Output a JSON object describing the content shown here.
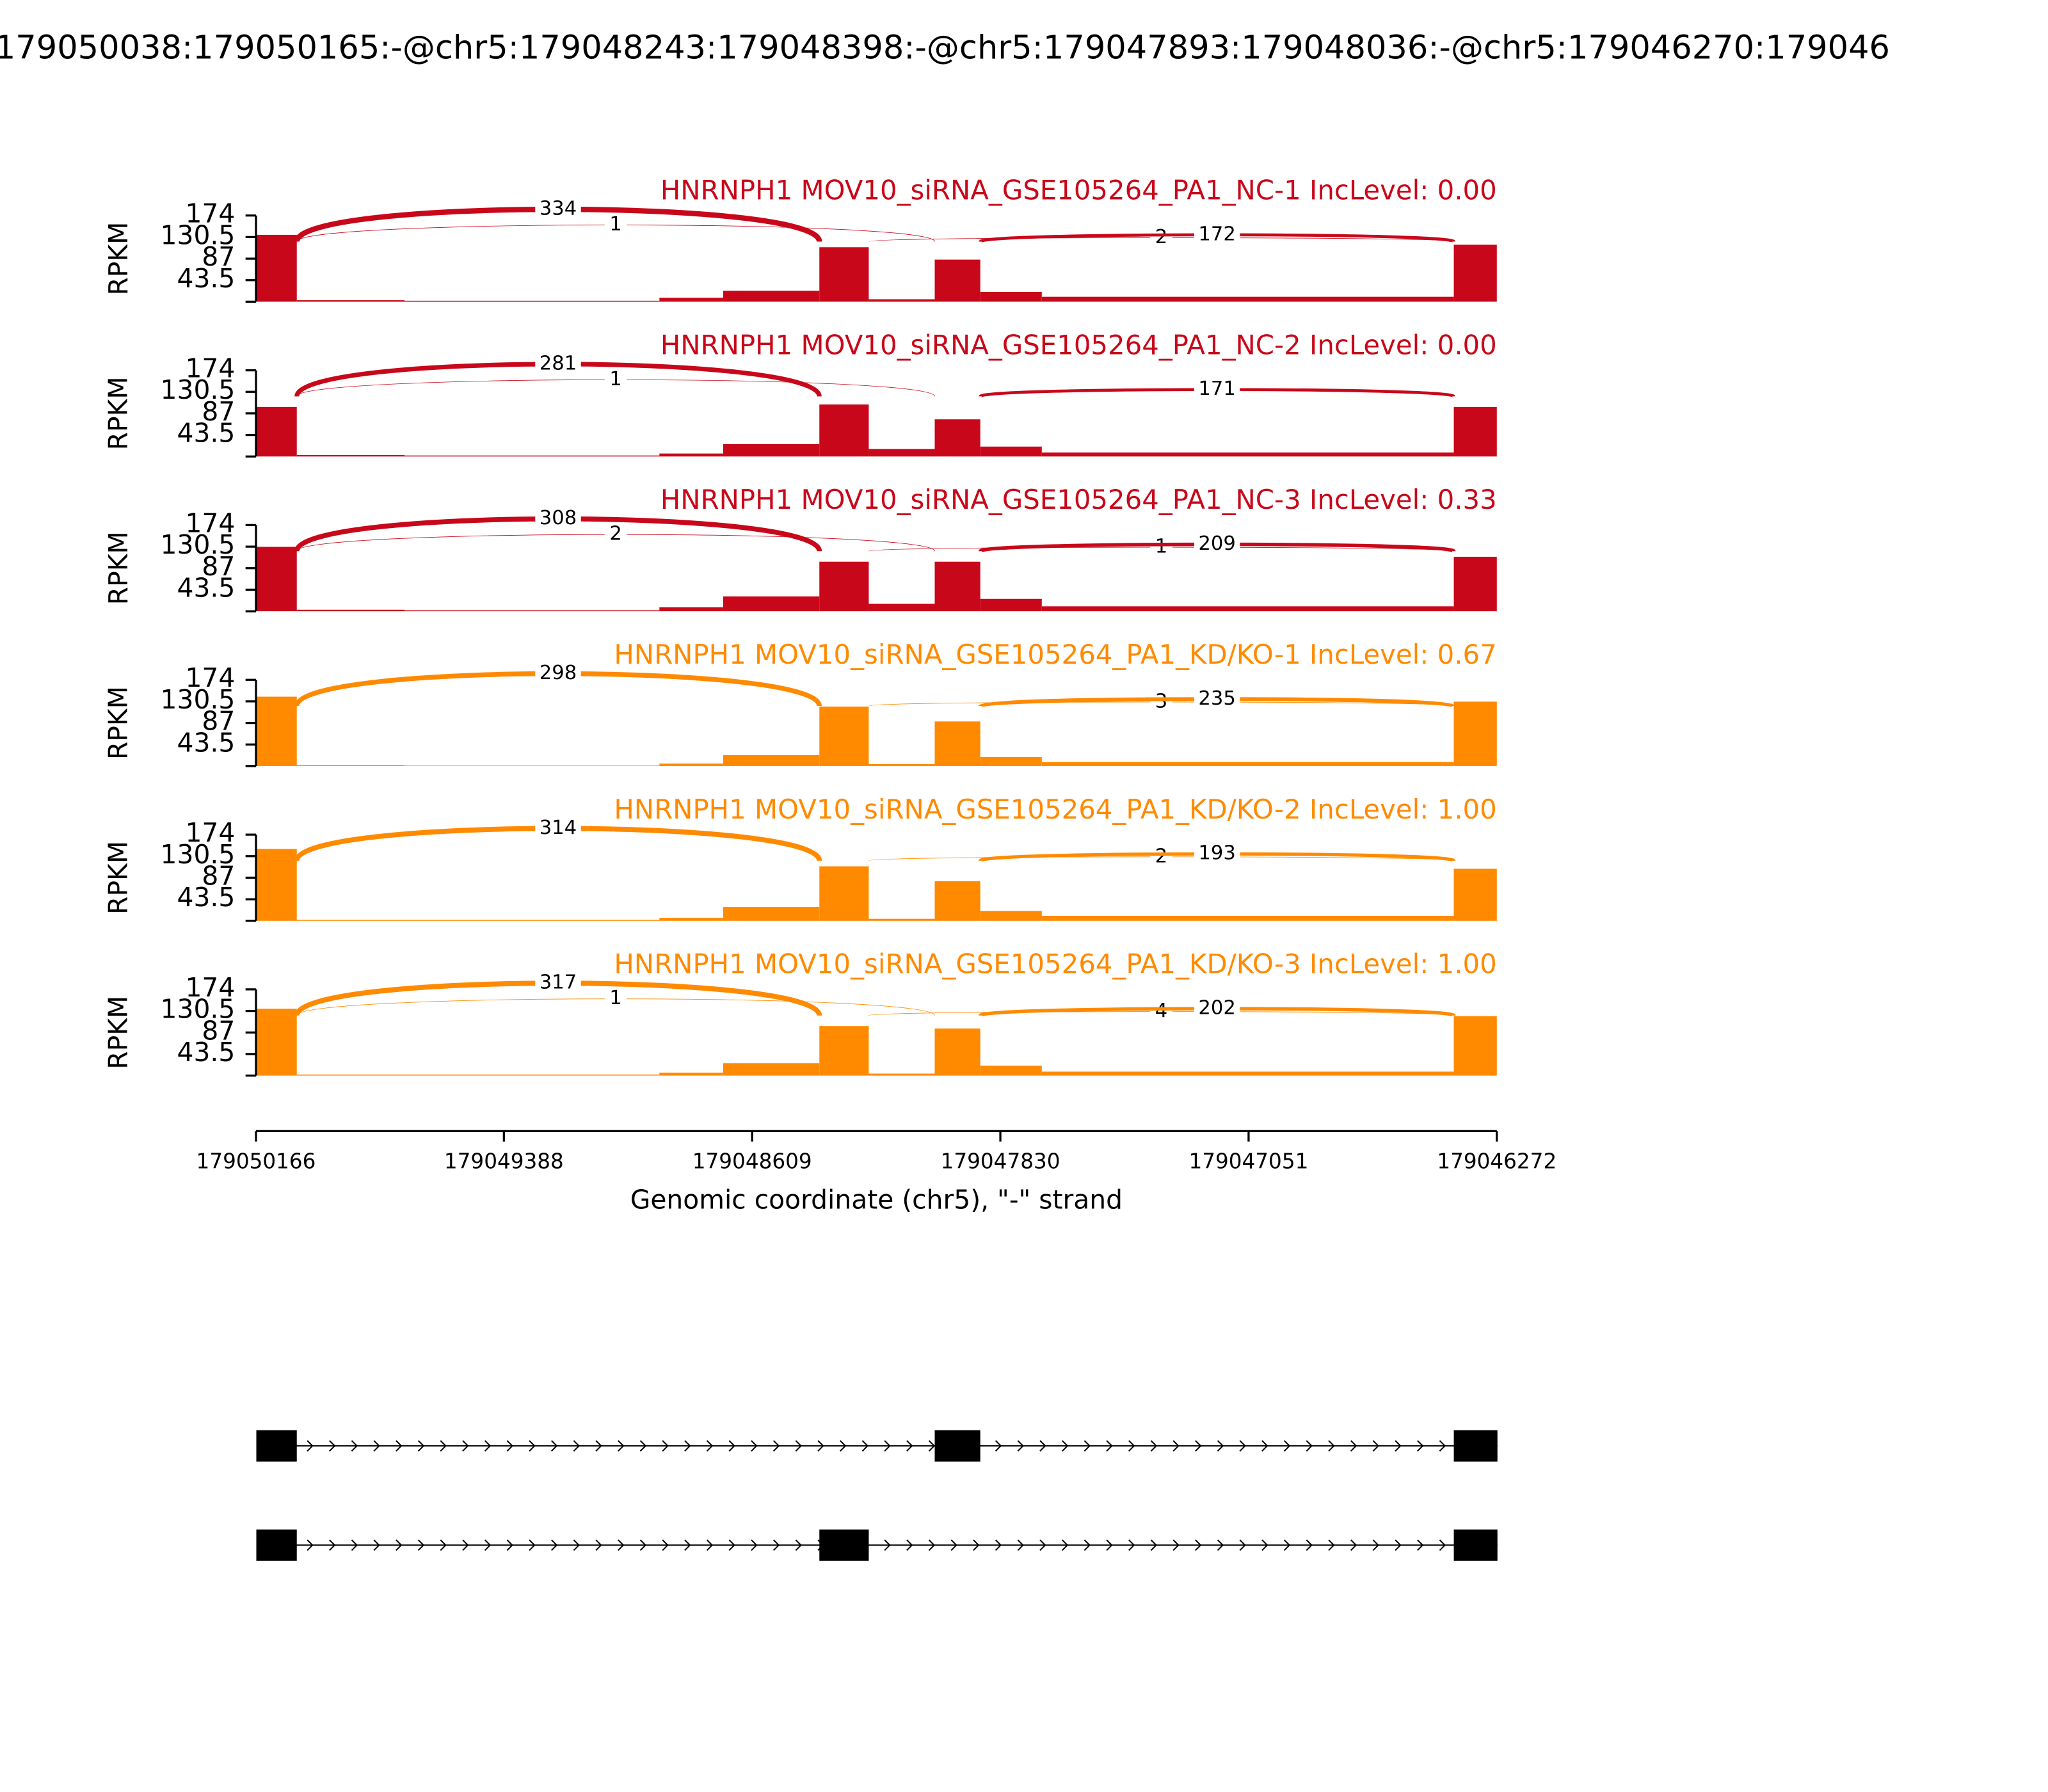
{
  "chart_data": {
    "type": "sashimi",
    "title": "179050038:179050165:-@chr5:179048243:179048398:-@chr5:179047893:179048036:-@chr5:179046270:179046",
    "xlim": [
      179050166,
      179046272
    ],
    "xticks": [
      179050166,
      179049388,
      179048609,
      179047830,
      179047051,
      179046272
    ],
    "xlabel": "Genomic coordinate (chr5), \"-\" strand",
    "ylabel": "RPKM",
    "ylim": [
      0,
      174
    ],
    "yticks": [
      43.5,
      87,
      130.5,
      174
    ],
    "bins": [
      179050166,
      179050038,
      179049700,
      179048900,
      179048700,
      179048398,
      179048243,
      179048036,
      179047893,
      179047700,
      179046407,
      179046272
    ],
    "junctions": [
      {
        "start": 179050038,
        "end": 179048398
      },
      {
        "start": 179050038,
        "end": 179048036
      },
      {
        "start": 179048243,
        "end": 179046407
      },
      {
        "start": 179047893,
        "end": 179046407
      }
    ],
    "tracks": [
      {
        "name": "HNRNPH1 MOV10_siRNA_GSE105264_PA1_NC-1 IncLevel: 0.00",
        "color": "#c8081a",
        "coverage": [
          135,
          3,
          2,
          8,
          22,
          110,
          5,
          85,
          20,
          10,
          115
        ],
        "counts": [
          334,
          1,
          2,
          172
        ]
      },
      {
        "name": "HNRNPH1 MOV10_siRNA_GSE105264_PA1_NC-2 IncLevel: 0.00",
        "color": "#c8081a",
        "coverage": [
          100,
          3,
          2,
          6,
          25,
          105,
          15,
          75,
          20,
          8,
          100
        ],
        "counts": [
          281,
          1,
          null,
          171
        ]
      },
      {
        "name": "HNRNPH1 MOV10_siRNA_GSE105264_PA1_NC-3 IncLevel: 0.33",
        "color": "#c8081a",
        "coverage": [
          130,
          3,
          2,
          8,
          30,
          100,
          15,
          100,
          25,
          10,
          110
        ],
        "counts": [
          308,
          2,
          1,
          209
        ]
      },
      {
        "name": "HNRNPH1 MOV10_siRNA_GSE105264_PA1_KD/KO-1 IncLevel: 0.67",
        "color": "#ff8a00",
        "coverage": [
          140,
          2,
          1,
          5,
          22,
          120,
          4,
          90,
          18,
          8,
          130
        ],
        "counts": [
          298,
          null,
          3,
          235
        ]
      },
      {
        "name": "HNRNPH1 MOV10_siRNA_GSE105264_PA1_KD/KO-2 IncLevel: 1.00",
        "color": "#ff8a00",
        "coverage": [
          145,
          2,
          2,
          6,
          28,
          110,
          4,
          80,
          20,
          10,
          105
        ],
        "counts": [
          314,
          null,
          2,
          193
        ]
      },
      {
        "name": "HNRNPH1 MOV10_siRNA_GSE105264_PA1_KD/KO-3 IncLevel: 1.00",
        "color": "#ff8a00",
        "coverage": [
          135,
          2,
          2,
          6,
          25,
          100,
          4,
          95,
          20,
          8,
          120
        ],
        "counts": [
          317,
          1,
          4,
          202
        ]
      }
    ],
    "transcripts": [
      {
        "exons": [
          [
            179050165,
            179050038
          ],
          [
            179048036,
            179047893
          ],
          [
            179046407,
            179046270
          ]
        ]
      },
      {
        "exons": [
          [
            179050165,
            179050038
          ],
          [
            179048398,
            179048243
          ],
          [
            179046407,
            179046270
          ]
        ]
      }
    ]
  }
}
